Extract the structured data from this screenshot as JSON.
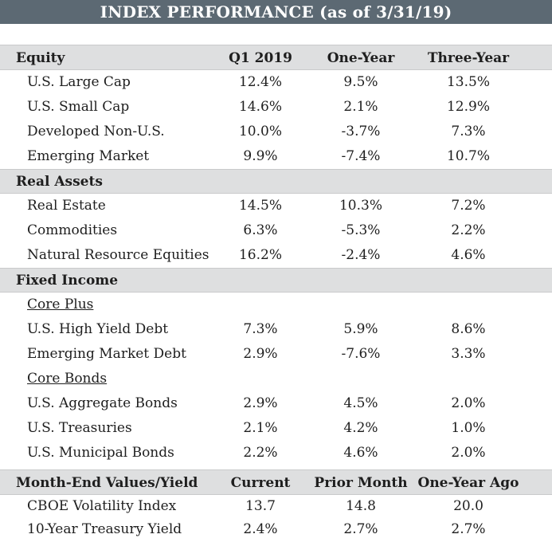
{
  "title": "INDEX PERFORMANCE (as of 3/31/19)",
  "equity": {
    "header": {
      "label": "Equity",
      "col1": "Q1 2019",
      "col2": "One-Year",
      "col3": "Three-Year"
    },
    "rows": [
      {
        "name": "U.S. Large Cap",
        "q1": "12.4%",
        "one": "9.5%",
        "three": "13.5%"
      },
      {
        "name": "U.S. Small Cap",
        "q1": "14.6%",
        "one": "2.1%",
        "three": "12.9%"
      },
      {
        "name": "Developed Non-U.S.",
        "q1": "10.0%",
        "one": "-3.7%",
        "three": "7.3%"
      },
      {
        "name": "Emerging Market",
        "q1": "9.9%",
        "one": "-7.4%",
        "three": "10.7%"
      }
    ]
  },
  "real_assets": {
    "label": "Real Assets",
    "rows": [
      {
        "name": "Real Estate",
        "q1": "14.5%",
        "one": "10.3%",
        "three": "7.2%"
      },
      {
        "name": "Commodities",
        "q1": "6.3%",
        "one": "-5.3%",
        "three": "2.2%"
      },
      {
        "name": "Natural Resource Equities",
        "q1": "16.2%",
        "one": "-2.4%",
        "three": "4.6%"
      }
    ]
  },
  "fixed_income": {
    "label": "Fixed Income",
    "core_plus": {
      "label": "Core Plus",
      "rows": [
        {
          "name": "U.S. High Yield Debt",
          "q1": "7.3%",
          "one": "5.9%",
          "three": "8.6%"
        },
        {
          "name": "Emerging Market Debt",
          "q1": "2.9%",
          "one": "-7.6%",
          "three": "3.3%"
        }
      ]
    },
    "core_bonds": {
      "label": "Core Bonds",
      "rows": [
        {
          "name": "U.S. Aggregate Bonds",
          "q1": "2.9%",
          "one": "4.5%",
          "three": "2.0%"
        },
        {
          "name": "U.S. Treasuries",
          "q1": "2.1%",
          "one": "4.2%",
          "three": "1.0%"
        },
        {
          "name": "U.S. Municipal Bonds",
          "q1": "2.2%",
          "one": "4.6%",
          "three": "2.0%"
        }
      ]
    }
  },
  "month_end": {
    "header": {
      "label": "Month-End Values/Yield",
      "col1": "Current",
      "col2": "Prior Month",
      "col3": "One-Year Ago"
    },
    "rows": [
      {
        "name": "CBOE Volatility Index",
        "current": "13.7",
        "prior": "14.8",
        "year_ago": "20.0"
      },
      {
        "name": "10-Year Treasury Yield",
        "current": "2.4%",
        "prior": "2.7%",
        "year_ago": "2.7%"
      }
    ]
  }
}
